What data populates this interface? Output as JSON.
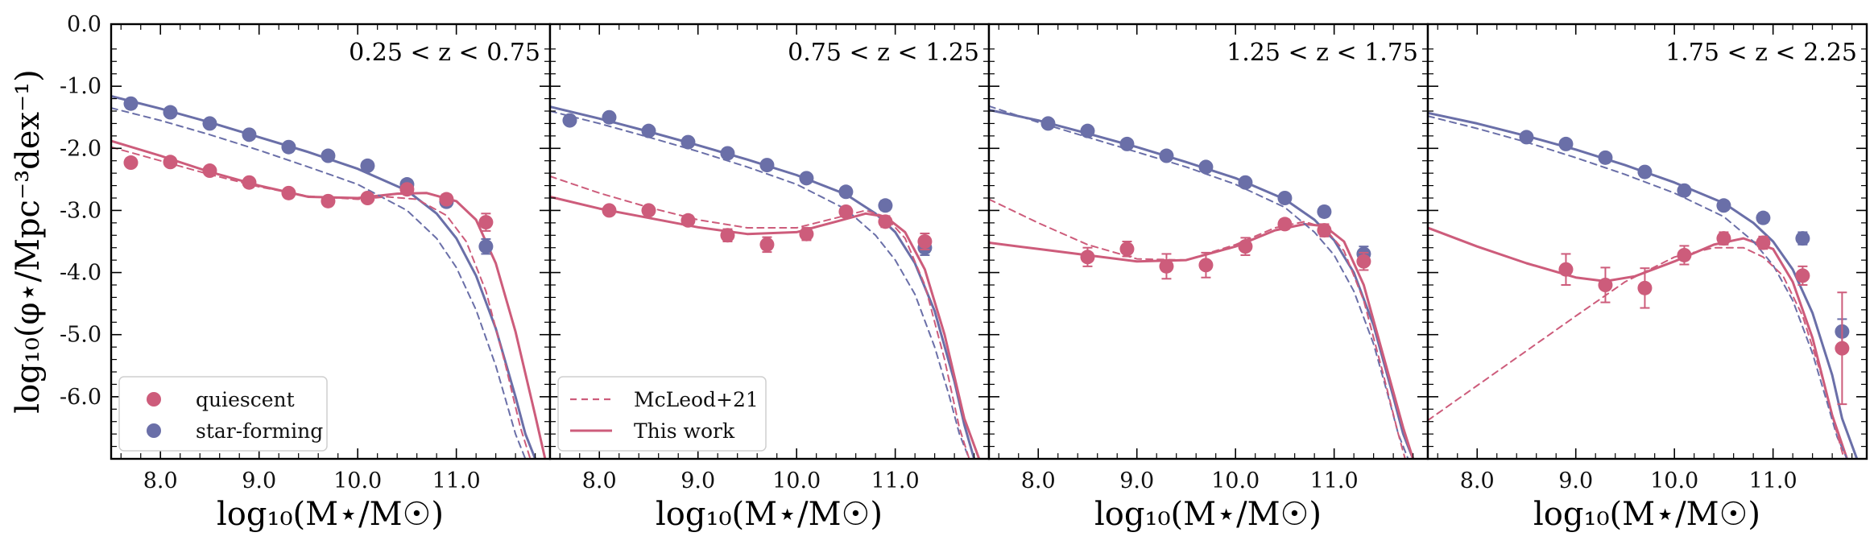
{
  "figure": {
    "ylabel": "log₁₀(φ⋆/Mpc⁻³dex⁻¹)",
    "xlabel": "log₁₀(M⋆/M☉)"
  },
  "legend_left": {
    "items": [
      {
        "label": "quiescent",
        "marker": "circle",
        "color": "#cd5c7b"
      },
      {
        "label": "star-forming",
        "marker": "circle",
        "color": "#6a6fa8"
      }
    ]
  },
  "legend_right": {
    "items": [
      {
        "label": "McLeod+21",
        "line": "dashed",
        "color": "#cd5c7b"
      },
      {
        "label": "This work",
        "line": "solid",
        "color": "#cd5c7b"
      }
    ]
  },
  "colors": {
    "quiescent": "#cd5c7b",
    "star_forming": "#6a6fa8"
  },
  "chart_data": [
    {
      "type": "scatter",
      "panel_label": "0.25 < z < 0.75",
      "xlim": [
        7.5,
        11.95
      ],
      "ylim": [
        -7.0,
        0.0
      ],
      "x_ticks": [
        8.0,
        9.0,
        10.0,
        11.0
      ],
      "x_tick_labels": [
        "8.0",
        "9.0",
        "10.0",
        "11.0"
      ],
      "y_ticks": [
        0.0,
        -1.0,
        -2.0,
        -3.0,
        -4.0,
        -5.0,
        -6.0
      ],
      "y_tick_labels": [
        "0.0",
        "-1.0",
        "-2.0",
        "-3.0",
        "-4.0",
        "-5.0",
        "-6.0"
      ],
      "series": [
        {
          "name": "star-forming",
          "kind": "points",
          "x": [
            7.7,
            8.1,
            8.5,
            8.9,
            9.3,
            9.7,
            10.1,
            10.5,
            10.9,
            11.3
          ],
          "y": [
            -1.28,
            -1.42,
            -1.6,
            -1.78,
            -1.98,
            -2.12,
            -2.28,
            -2.58,
            -2.86,
            -3.58
          ],
          "yerr": [
            0.04,
            0.04,
            0.04,
            0.04,
            0.05,
            0.05,
            0.05,
            0.06,
            0.08,
            0.12
          ]
        },
        {
          "name": "quiescent",
          "kind": "points",
          "x": [
            7.7,
            8.1,
            8.5,
            8.9,
            9.3,
            9.7,
            10.1,
            10.5,
            10.9,
            11.3
          ],
          "y": [
            -2.23,
            -2.22,
            -2.36,
            -2.55,
            -2.72,
            -2.85,
            -2.8,
            -2.66,
            -2.82,
            -3.19
          ],
          "yerr": [
            0.05,
            0.05,
            0.05,
            0.05,
            0.06,
            0.06,
            0.06,
            0.06,
            0.08,
            0.14
          ]
        },
        {
          "name": "star-forming",
          "kind": "fit",
          "x": [
            7.5,
            8.0,
            8.5,
            9.0,
            9.5,
            10.0,
            10.5,
            10.8,
            11.0,
            11.2,
            11.4,
            11.6,
            11.7,
            11.8
          ],
          "y": [
            -1.16,
            -1.36,
            -1.58,
            -1.82,
            -2.06,
            -2.33,
            -2.68,
            -3.05,
            -3.45,
            -4.05,
            -4.9,
            -6.0,
            -6.6,
            -7.0
          ]
        },
        {
          "name": "quiescent",
          "kind": "fit",
          "x": [
            7.5,
            8.0,
            8.5,
            9.0,
            9.5,
            10.0,
            10.4,
            10.7,
            11.0,
            11.2,
            11.4,
            11.6,
            11.8,
            11.9
          ],
          "y": [
            -1.88,
            -2.12,
            -2.38,
            -2.6,
            -2.78,
            -2.8,
            -2.73,
            -2.72,
            -2.85,
            -3.15,
            -3.85,
            -4.95,
            -6.3,
            -7.0
          ]
        },
        {
          "name": "star-forming",
          "kind": "reference",
          "x": [
            7.5,
            8.0,
            8.5,
            9.0,
            9.5,
            10.0,
            10.5,
            10.8,
            11.0,
            11.2,
            11.4,
            11.5,
            11.6,
            11.7
          ],
          "y": [
            -1.35,
            -1.55,
            -1.78,
            -2.03,
            -2.3,
            -2.58,
            -3.0,
            -3.45,
            -3.92,
            -4.6,
            -5.5,
            -6.05,
            -6.6,
            -7.0
          ]
        },
        {
          "name": "quiescent",
          "kind": "reference",
          "x": [
            7.5,
            8.0,
            8.5,
            9.0,
            9.5,
            10.0,
            10.3,
            10.6,
            10.9,
            11.1,
            11.3,
            11.5,
            11.65,
            11.75
          ],
          "y": [
            -1.98,
            -2.2,
            -2.42,
            -2.62,
            -2.77,
            -2.82,
            -2.78,
            -2.82,
            -3.08,
            -3.5,
            -4.3,
            -5.5,
            -6.5,
            -7.0
          ]
        }
      ]
    },
    {
      "type": "scatter",
      "panel_label": "0.75 < z < 1.25",
      "xlim": [
        7.5,
        11.95
      ],
      "ylim": [
        -7.0,
        0.0
      ],
      "x_ticks": [
        8.0,
        9.0,
        10.0,
        11.0
      ],
      "x_tick_labels": [
        "8.0",
        "9.0",
        "10.0",
        "11.0"
      ],
      "y_ticks": [
        0.0,
        -1.0,
        -2.0,
        -3.0,
        -4.0,
        -5.0,
        -6.0
      ],
      "y_tick_labels": [
        "0.0",
        "-1.0",
        "-2.0",
        "-3.0",
        "-4.0",
        "-5.0",
        "-6.0"
      ],
      "series": [
        {
          "name": "star-forming",
          "kind": "points",
          "x": [
            7.7,
            8.1,
            8.5,
            8.9,
            9.3,
            9.7,
            10.1,
            10.5,
            10.9,
            11.3
          ],
          "y": [
            -1.55,
            -1.5,
            -1.72,
            -1.9,
            -2.08,
            -2.27,
            -2.48,
            -2.7,
            -2.92,
            -3.6
          ],
          "yerr": [
            0.04,
            0.04,
            0.04,
            0.04,
            0.05,
            0.05,
            0.05,
            0.06,
            0.08,
            0.12
          ]
        },
        {
          "name": "quiescent",
          "kind": "points",
          "x": [
            8.1,
            8.5,
            8.9,
            9.3,
            9.7,
            10.1,
            10.5,
            10.9,
            11.3
          ],
          "y": [
            -3.0,
            -3.0,
            -3.16,
            -3.4,
            -3.55,
            -3.38,
            -3.02,
            -3.18,
            -3.5
          ],
          "yerr": [
            0.07,
            0.07,
            0.08,
            0.1,
            0.12,
            0.1,
            0.08,
            0.09,
            0.13
          ]
        },
        {
          "name": "star-forming",
          "kind": "fit",
          "x": [
            7.5,
            8.0,
            8.5,
            9.0,
            9.5,
            10.0,
            10.5,
            10.8,
            11.0,
            11.2,
            11.4,
            11.6,
            11.7,
            11.8
          ],
          "y": [
            -1.33,
            -1.52,
            -1.73,
            -1.95,
            -2.18,
            -2.43,
            -2.74,
            -3.05,
            -3.35,
            -3.85,
            -4.62,
            -5.75,
            -6.45,
            -7.0
          ]
        },
        {
          "name": "quiescent",
          "kind": "fit",
          "x": [
            7.5,
            8.0,
            8.5,
            9.0,
            9.5,
            10.0,
            10.4,
            10.7,
            10.9,
            11.1,
            11.3,
            11.5,
            11.7,
            11.85
          ],
          "y": [
            -2.78,
            -2.97,
            -3.12,
            -3.27,
            -3.38,
            -3.35,
            -3.18,
            -3.05,
            -3.1,
            -3.35,
            -3.95,
            -5.0,
            -6.35,
            -7.0
          ]
        },
        {
          "name": "star-forming",
          "kind": "reference",
          "x": [
            7.5,
            8.0,
            8.5,
            9.0,
            9.5,
            10.0,
            10.5,
            10.8,
            11.0,
            11.2,
            11.4,
            11.55,
            11.65,
            11.75
          ],
          "y": [
            -1.4,
            -1.6,
            -1.82,
            -2.05,
            -2.3,
            -2.58,
            -2.98,
            -3.4,
            -3.8,
            -4.35,
            -5.2,
            -6.0,
            -6.6,
            -7.0
          ]
        },
        {
          "name": "quiescent",
          "kind": "reference",
          "x": [
            7.5,
            8.0,
            8.5,
            9.0,
            9.5,
            10.0,
            10.4,
            10.7,
            10.9,
            11.1,
            11.3,
            11.5,
            11.65,
            11.75
          ],
          "y": [
            -2.45,
            -2.72,
            -2.95,
            -3.15,
            -3.28,
            -3.28,
            -3.12,
            -3.0,
            -3.1,
            -3.45,
            -4.2,
            -5.4,
            -6.5,
            -7.0
          ]
        }
      ]
    },
    {
      "type": "scatter",
      "panel_label": "1.25 < z < 1.75",
      "xlim": [
        7.5,
        11.95
      ],
      "ylim": [
        -7.0,
        0.0
      ],
      "x_ticks": [
        8.0,
        9.0,
        10.0,
        11.0
      ],
      "x_tick_labels": [
        "8.0",
        "9.0",
        "10.0",
        "11.0"
      ],
      "y_ticks": [
        0.0,
        -1.0,
        -2.0,
        -3.0,
        -4.0,
        -5.0,
        -6.0
      ],
      "y_tick_labels": [
        "0.0",
        "-1.0",
        "-2.0",
        "-3.0",
        "-4.0",
        "-5.0",
        "-6.0"
      ],
      "series": [
        {
          "name": "star-forming",
          "kind": "points",
          "x": [
            8.1,
            8.5,
            8.9,
            9.3,
            9.7,
            10.1,
            10.5,
            10.9,
            11.3
          ],
          "y": [
            -1.6,
            -1.72,
            -1.93,
            -2.12,
            -2.3,
            -2.55,
            -2.8,
            -3.02,
            -3.7
          ],
          "yerr": [
            0.04,
            0.04,
            0.04,
            0.05,
            0.05,
            0.05,
            0.06,
            0.08,
            0.12
          ]
        },
        {
          "name": "quiescent",
          "kind": "points",
          "x": [
            8.5,
            8.9,
            9.3,
            9.7,
            10.1,
            10.5,
            10.9,
            11.3
          ],
          "y": [
            -3.75,
            -3.62,
            -3.9,
            -3.88,
            -3.58,
            -3.22,
            -3.32,
            -3.82
          ],
          "yerr": [
            0.15,
            0.12,
            0.2,
            0.2,
            0.14,
            0.08,
            0.1,
            0.14
          ]
        },
        {
          "name": "star-forming",
          "kind": "fit",
          "x": [
            7.5,
            8.0,
            8.5,
            9.0,
            9.5,
            10.0,
            10.5,
            10.8,
            11.0,
            11.2,
            11.4,
            11.6,
            11.7,
            11.8
          ],
          "y": [
            -1.38,
            -1.55,
            -1.76,
            -1.98,
            -2.22,
            -2.48,
            -2.82,
            -3.15,
            -3.48,
            -4.0,
            -4.85,
            -6.0,
            -6.6,
            -7.0
          ]
        },
        {
          "name": "quiescent",
          "kind": "fit",
          "x": [
            7.5,
            8.0,
            8.5,
            9.0,
            9.5,
            10.0,
            10.4,
            10.7,
            10.9,
            11.1,
            11.3,
            11.5,
            11.7,
            11.8
          ],
          "y": [
            -3.52,
            -3.62,
            -3.72,
            -3.82,
            -3.8,
            -3.58,
            -3.32,
            -3.22,
            -3.25,
            -3.5,
            -4.2,
            -5.35,
            -6.5,
            -7.0
          ]
        },
        {
          "name": "star-forming",
          "kind": "reference",
          "x": [
            7.5,
            8.0,
            8.5,
            9.0,
            9.5,
            10.0,
            10.5,
            10.8,
            11.0,
            11.2,
            11.4,
            11.55,
            11.65,
            11.75
          ],
          "y": [
            -1.32,
            -1.58,
            -1.82,
            -2.06,
            -2.3,
            -2.58,
            -2.95,
            -3.35,
            -3.72,
            -4.3,
            -5.15,
            -6.0,
            -6.6,
            -7.0
          ]
        },
        {
          "name": "quiescent",
          "kind": "reference",
          "x": [
            7.5,
            8.0,
            8.5,
            9.0,
            9.5,
            10.0,
            10.4,
            10.7,
            10.9,
            11.1,
            11.3,
            11.5,
            11.65,
            11.72
          ],
          "y": [
            -2.82,
            -3.2,
            -3.55,
            -3.78,
            -3.8,
            -3.55,
            -3.28,
            -3.18,
            -3.28,
            -3.65,
            -4.45,
            -5.65,
            -6.6,
            -7.0
          ]
        }
      ]
    },
    {
      "type": "scatter",
      "panel_label": "1.75 < z < 2.25",
      "xlim": [
        7.5,
        11.95
      ],
      "ylim": [
        -7.0,
        0.0
      ],
      "x_ticks": [
        8.0,
        9.0,
        10.0,
        11.0
      ],
      "x_tick_labels": [
        "8.0",
        "9.0",
        "10.0",
        "11.0"
      ],
      "y_ticks": [
        0.0,
        -1.0,
        -2.0,
        -3.0,
        -4.0,
        -5.0,
        -6.0
      ],
      "y_tick_labels": [
        "0.0",
        "-1.0",
        "-2.0",
        "-3.0",
        "-4.0",
        "-5.0",
        "-6.0"
      ],
      "series": [
        {
          "name": "star-forming",
          "kind": "points",
          "x": [
            8.5,
            8.9,
            9.3,
            9.7,
            10.1,
            10.5,
            10.9,
            11.3,
            11.7
          ],
          "y": [
            -1.82,
            -1.93,
            -2.15,
            -2.38,
            -2.68,
            -2.92,
            -3.12,
            -3.45,
            -4.95
          ],
          "yerr": [
            0.04,
            0.04,
            0.05,
            0.05,
            0.06,
            0.06,
            0.08,
            0.1,
            0.2
          ]
        },
        {
          "name": "quiescent",
          "kind": "points",
          "x": [
            8.9,
            9.3,
            9.7,
            10.1,
            10.5,
            10.9,
            11.3,
            11.7
          ],
          "y": [
            -3.95,
            -4.2,
            -4.25,
            -3.72,
            -3.45,
            -3.52,
            -4.05,
            -5.22
          ],
          "yerr": [
            0.25,
            0.28,
            0.32,
            0.15,
            0.1,
            0.1,
            0.15,
            0.9
          ]
        },
        {
          "name": "star-forming",
          "kind": "fit",
          "x": [
            7.5,
            8.0,
            8.5,
            9.0,
            9.5,
            10.0,
            10.5,
            10.8,
            11.0,
            11.2,
            11.4,
            11.6,
            11.7,
            11.85
          ],
          "y": [
            -1.43,
            -1.6,
            -1.8,
            -2.02,
            -2.27,
            -2.55,
            -2.88,
            -3.2,
            -3.5,
            -3.95,
            -4.65,
            -5.65,
            -6.35,
            -7.0
          ]
        },
        {
          "name": "quiescent",
          "kind": "fit",
          "x": [
            7.5,
            8.0,
            8.5,
            9.0,
            9.3,
            9.6,
            10.0,
            10.4,
            10.7,
            11.0,
            11.2,
            11.4,
            11.6,
            11.75
          ],
          "y": [
            -3.28,
            -3.58,
            -3.85,
            -4.08,
            -4.14,
            -4.06,
            -3.82,
            -3.55,
            -3.45,
            -3.62,
            -4.15,
            -5.05,
            -6.3,
            -7.0
          ]
        },
        {
          "name": "star-forming",
          "kind": "reference",
          "x": [
            7.5,
            8.0,
            8.5,
            9.0,
            9.5,
            10.0,
            10.5,
            10.8,
            11.0,
            11.2,
            11.4,
            11.55,
            11.65,
            11.75
          ],
          "y": [
            -1.48,
            -1.68,
            -1.9,
            -2.15,
            -2.42,
            -2.72,
            -3.1,
            -3.5,
            -3.88,
            -4.45,
            -5.3,
            -6.1,
            -6.65,
            -7.0
          ]
        },
        {
          "name": "quiescent",
          "kind": "reference",
          "x": [
            7.5,
            8.0,
            8.5,
            9.0,
            9.5,
            10.0,
            10.4,
            10.7,
            10.9,
            11.1,
            11.3,
            11.5,
            11.65,
            11.72
          ],
          "y": [
            -6.38,
            -5.82,
            -5.26,
            -4.7,
            -4.15,
            -3.75,
            -3.6,
            -3.6,
            -3.75,
            -4.05,
            -4.7,
            -5.7,
            -6.6,
            -7.0
          ]
        }
      ]
    }
  ]
}
